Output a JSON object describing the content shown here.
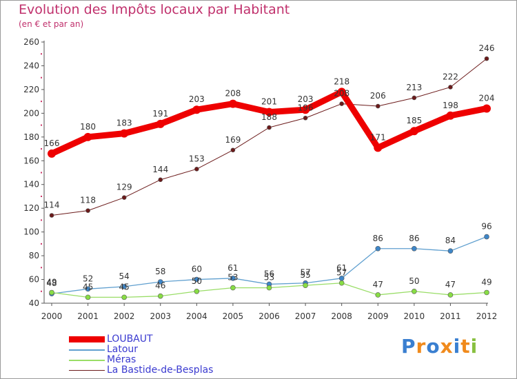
{
  "title": "Evolution des Impôts locaux par Habitant",
  "subtitle": "(en € et par an)",
  "brand": "Proxiti",
  "chart_data": {
    "type": "line",
    "title": "Evolution des Impôts locaux par Habitant",
    "ylabel": "(en € et par an)",
    "xlabel": "",
    "ylim": [
      40,
      260
    ],
    "yticks": [
      40,
      60,
      80,
      100,
      120,
      140,
      160,
      180,
      200,
      220,
      240,
      260
    ],
    "x": [
      "2000",
      "2001",
      "2002",
      "2003",
      "2004",
      "2005",
      "2006",
      "2007",
      "2008",
      "2009",
      "2010",
      "2011",
      "2012"
    ],
    "grid": false,
    "legend_position": "bottom-left",
    "series": [
      {
        "name": "LOUBAUT",
        "color": "#ee0000",
        "values": [
          166,
          180,
          183,
          191,
          203,
          208,
          201,
          203,
          218,
          171,
          185,
          198,
          204
        ]
      },
      {
        "name": "Latour",
        "color": "#5f9fcf",
        "values": [
          48,
          52,
          54,
          58,
          60,
          61,
          56,
          57,
          61,
          86,
          86,
          84,
          96
        ]
      },
      {
        "name": "Méras",
        "color": "#99dd66",
        "values": [
          49,
          45,
          45,
          46,
          50,
          53,
          53,
          55,
          57,
          47,
          50,
          47,
          49
        ]
      },
      {
        "name": "La Bastide-de-Besplas",
        "color": "#6b1a1a",
        "values": [
          114,
          118,
          129,
          144,
          153,
          169,
          188,
          196,
          208,
          206,
          213,
          222,
          246
        ]
      }
    ]
  }
}
